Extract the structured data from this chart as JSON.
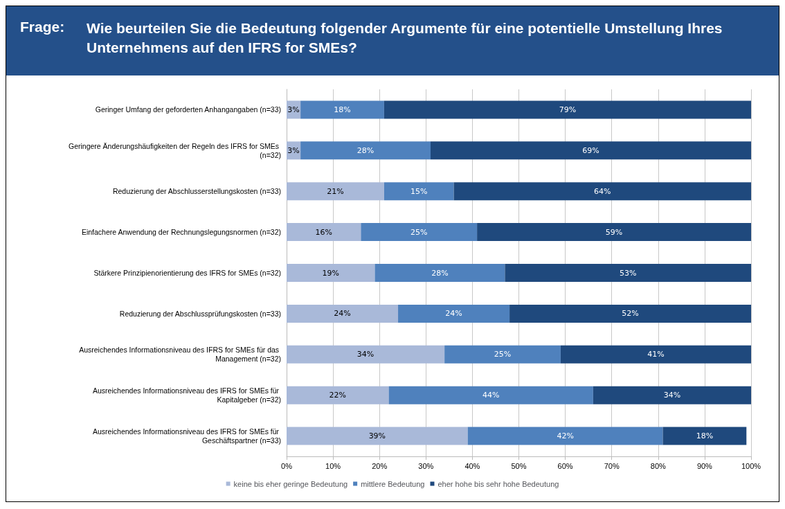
{
  "chart_data": {
    "type": "bar",
    "orientation": "horizontal",
    "stacked": true,
    "title": "Frage:",
    "subtitle": "Wie beurteilen Sie die Bedeutung folgender Argumente für eine potentielle Umstellung Ihres Unternehmens auf den IFRS for SMEs?",
    "categories": [
      "Geringer Umfang der geforderten Anhangangaben (n=33)",
      "Geringere Änderungshäufigkeiten der Regeln des IFRS for SMEs (n=32)",
      "Reduzierung der Abschlusserstellungskosten (n=33)",
      "Einfachere Anwendung der Rechnungslegungsnormen (n=32)",
      "Stärkere Prinzipienorientierung des IFRS for SMEs (n=32)",
      "Reduzierung der Abschlussprüfungskosten (n=33)",
      "Ausreichendes Informationsniveau des IFRS for SMEs für das Management (n=32)",
      "Ausreichendes Informationsniveau des IFRS for SMEs für Kapitalgeber (n=32)",
      "Ausreichendes Informationsniveau des IFRS for SMEs für Geschäftspartner (n=33)"
    ],
    "series": [
      {
        "name": "keine bis eher geringe Bedeutung",
        "color": "#a9b9d9",
        "values": [
          3,
          3,
          21,
          16,
          19,
          24,
          34,
          22,
          39
        ],
        "value_labels": [
          "3%",
          "3%",
          "21%",
          "16%",
          "19%",
          "24%",
          "34%",
          "22%",
          "39%"
        ]
      },
      {
        "name": "mittlere Bedeutung",
        "color": "#4f81bd",
        "values": [
          18,
          28,
          15,
          25,
          28,
          24,
          25,
          44,
          42
        ],
        "value_labels": [
          "18%",
          "28%",
          "15%",
          "25%",
          "28%",
          "24%",
          "25%",
          "44%",
          "42%"
        ]
      },
      {
        "name": "eher hohe bis sehr hohe Bedeutung",
        "color": "#1f497d",
        "values": [
          79,
          69,
          64,
          59,
          53,
          52,
          41,
          34,
          18
        ],
        "value_labels": [
          "79%",
          "69%",
          "64%",
          "59%",
          "53%",
          "52%",
          "41%",
          "34%",
          "18%"
        ]
      }
    ],
    "xlim": [
      0,
      100
    ],
    "xticks": [
      {
        "value": 0,
        "label": "0%"
      },
      {
        "value": 10,
        "label": "10%"
      },
      {
        "value": 20,
        "label": "20%"
      },
      {
        "value": 30,
        "label": "30%"
      },
      {
        "value": 40,
        "label": "40%"
      },
      {
        "value": 50,
        "label": "50%"
      },
      {
        "value": 60,
        "label": "60%"
      },
      {
        "value": 70,
        "label": "70%"
      },
      {
        "value": 80,
        "label": "80%"
      },
      {
        "value": 90,
        "label": "90%"
      },
      {
        "value": 100,
        "label": "100%"
      }
    ],
    "grid": "x",
    "legend": "bottom"
  }
}
